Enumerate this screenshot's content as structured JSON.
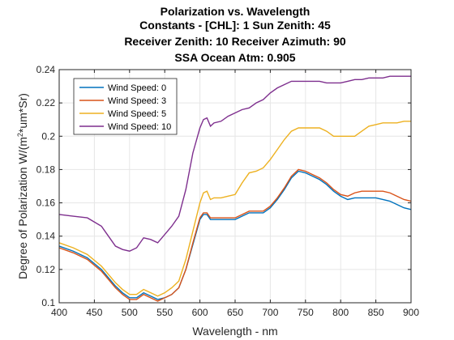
{
  "chart_data": {
    "type": "line",
    "title": [
      "Polarization vs. Wavelength",
      "Constants - [CHL]: 1 Sun Zenith: 45",
      "Receiver Zenith: 10 Receiver Azimuth: 90",
      "SSA Ocean Atm: 0.905"
    ],
    "xlabel": "Wavelength - nm",
    "ylabel_prefix": "Degree of Polarization W/(m",
    "ylabel_sup": "2",
    "ylabel_suffix": "*um*Sr)",
    "xlim": [
      400,
      900
    ],
    "ylim": [
      0.1,
      0.24
    ],
    "xticks": [
      400,
      450,
      500,
      550,
      600,
      650,
      700,
      750,
      800,
      850,
      900
    ],
    "xtick_labels": [
      "400",
      "450",
      "500",
      "550",
      "600",
      "650",
      "700",
      "750",
      "800",
      "850",
      "900"
    ],
    "yticks": [
      0.1,
      0.12,
      0.14,
      0.16,
      0.18,
      0.2,
      0.22,
      0.24
    ],
    "ytick_labels": [
      "0.1",
      "0.12",
      "0.14",
      "0.16",
      "0.18",
      "0.2",
      "0.22",
      "0.24"
    ],
    "grid": true,
    "legend_position": "top-left",
    "x": [
      400,
      420,
      440,
      460,
      480,
      490,
      500,
      510,
      520,
      530,
      540,
      550,
      560,
      570,
      580,
      590,
      600,
      605,
      610,
      615,
      620,
      630,
      640,
      650,
      660,
      670,
      680,
      690,
      700,
      710,
      720,
      730,
      740,
      750,
      760,
      770,
      780,
      790,
      800,
      810,
      820,
      830,
      840,
      850,
      860,
      870,
      880,
      890,
      900
    ],
    "series": [
      {
        "name": "Wind Speed: 0",
        "color": "#0072BD",
        "values": [
          0.134,
          0.131,
          0.127,
          0.12,
          0.11,
          0.106,
          0.103,
          0.103,
          0.106,
          0.104,
          0.102,
          0.103,
          0.105,
          0.109,
          0.12,
          0.135,
          0.15,
          0.153,
          0.153,
          0.15,
          0.15,
          0.15,
          0.15,
          0.15,
          0.152,
          0.154,
          0.154,
          0.154,
          0.157,
          0.162,
          0.168,
          0.175,
          0.179,
          0.178,
          0.176,
          0.174,
          0.171,
          0.167,
          0.164,
          0.162,
          0.163,
          0.163,
          0.163,
          0.163,
          0.162,
          0.161,
          0.159,
          0.157,
          0.156
        ]
      },
      {
        "name": "Wind Speed: 3",
        "color": "#D95319",
        "values": [
          0.133,
          0.13,
          0.126,
          0.119,
          0.109,
          0.105,
          0.102,
          0.102,
          0.105,
          0.103,
          0.101,
          0.103,
          0.105,
          0.109,
          0.12,
          0.136,
          0.151,
          0.154,
          0.154,
          0.151,
          0.151,
          0.151,
          0.151,
          0.151,
          0.153,
          0.155,
          0.155,
          0.155,
          0.158,
          0.163,
          0.169,
          0.176,
          0.18,
          0.179,
          0.177,
          0.175,
          0.172,
          0.168,
          0.165,
          0.164,
          0.166,
          0.167,
          0.167,
          0.167,
          0.167,
          0.166,
          0.164,
          0.162,
          0.161
        ]
      },
      {
        "name": "Wind Speed: 5",
        "color": "#EDB120",
        "values": [
          0.136,
          0.133,
          0.129,
          0.122,
          0.112,
          0.108,
          0.105,
          0.105,
          0.108,
          0.106,
          0.104,
          0.106,
          0.109,
          0.113,
          0.126,
          0.143,
          0.16,
          0.166,
          0.167,
          0.162,
          0.163,
          0.163,
          0.164,
          0.165,
          0.172,
          0.178,
          0.179,
          0.181,
          0.186,
          0.192,
          0.198,
          0.203,
          0.205,
          0.205,
          0.205,
          0.205,
          0.203,
          0.2,
          0.2,
          0.2,
          0.2,
          0.203,
          0.206,
          0.207,
          0.208,
          0.208,
          0.208,
          0.209,
          0.209
        ]
      },
      {
        "name": "Wind Speed: 10",
        "color": "#7E2F8E",
        "values": [
          0.153,
          0.152,
          0.151,
          0.146,
          0.134,
          0.132,
          0.131,
          0.133,
          0.139,
          0.138,
          0.136,
          0.141,
          0.146,
          0.152,
          0.168,
          0.19,
          0.205,
          0.21,
          0.211,
          0.206,
          0.208,
          0.209,
          0.212,
          0.214,
          0.216,
          0.217,
          0.22,
          0.222,
          0.226,
          0.229,
          0.231,
          0.233,
          0.233,
          0.233,
          0.233,
          0.233,
          0.232,
          0.232,
          0.232,
          0.233,
          0.234,
          0.234,
          0.235,
          0.235,
          0.235,
          0.236,
          0.236,
          0.236,
          0.236
        ]
      }
    ]
  }
}
